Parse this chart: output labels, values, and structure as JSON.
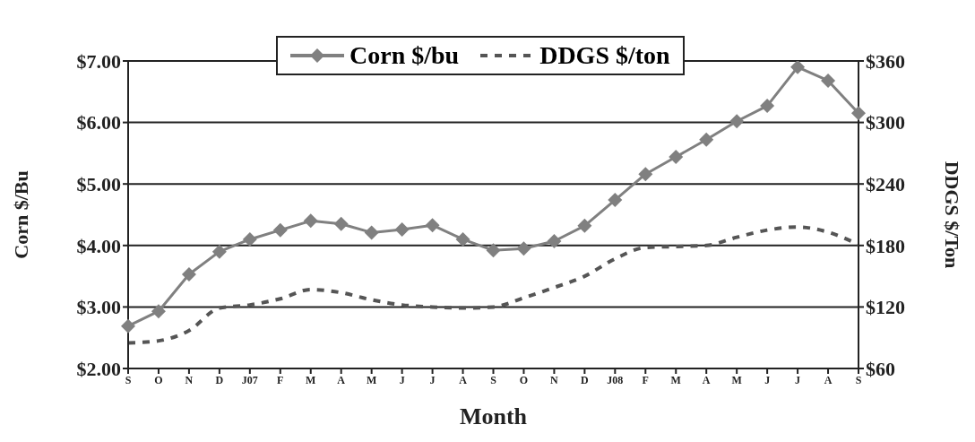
{
  "chart_data": {
    "type": "line",
    "xlabel": "Month",
    "ylabel": "Corn $/Bu",
    "y2label": "DDGS $/Ton",
    "categories": [
      "S",
      "O",
      "N",
      "D",
      "J07",
      "F",
      "M",
      "A",
      "M",
      "J",
      "J",
      "A",
      "S",
      "O",
      "N",
      "D",
      "J08",
      "F",
      "M",
      "A",
      "M",
      "J",
      "J",
      "A",
      "S"
    ],
    "series": [
      {
        "name": "Corn $/bu",
        "color": "#808080",
        "marker": "diamond",
        "line_style": "solid",
        "values": [
          2.69,
          2.93,
          3.53,
          3.9,
          4.1,
          4.25,
          4.4,
          4.35,
          4.21,
          4.26,
          4.33,
          4.1,
          3.92,
          3.95,
          4.07,
          4.32,
          4.74,
          5.16,
          5.44,
          5.72,
          6.02,
          6.27,
          6.9,
          6.68,
          6.15
        ]
      },
      {
        "name": "DDGS $/ton",
        "color": "#555555",
        "marker": "none",
        "line_style": "dashed",
        "axis": "y2",
        "values": [
          85,
          87,
          97,
          119,
          122,
          128,
          137,
          134,
          127,
          122,
          120,
          119,
          120,
          129,
          139,
          150,
          167,
          178,
          179,
          180,
          188,
          195,
          198,
          193,
          181
        ]
      }
    ],
    "ylim": [
      2,
      7
    ],
    "yticks": [
      {
        "value": 2,
        "label": "$2.00"
      },
      {
        "value": 3,
        "label": "$3.00"
      },
      {
        "value": 4,
        "label": "$4.00"
      },
      {
        "value": 5,
        "label": "$5.00"
      },
      {
        "value": 6,
        "label": "$6.00"
      },
      {
        "value": 7,
        "label": "$7.00"
      }
    ],
    "y2lim": [
      60,
      360
    ],
    "y2ticks": [
      {
        "value": 60,
        "label": "$60"
      },
      {
        "value": 120,
        "label": "$120"
      },
      {
        "value": 180,
        "label": "$180"
      },
      {
        "value": 240,
        "label": "$240"
      },
      {
        "value": 300,
        "label": "$300"
      },
      {
        "value": 360,
        "label": "$360"
      }
    ],
    "grid": "y",
    "legend": "top"
  }
}
